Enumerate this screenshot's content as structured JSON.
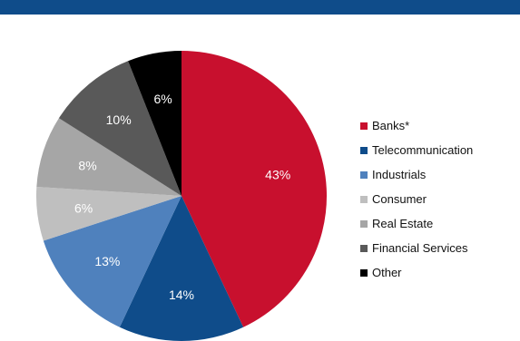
{
  "chart_data": {
    "type": "pie",
    "categories": [
      "Banks*",
      "Telecommunication",
      "Industrials",
      "Consumer",
      "Real Estate",
      "Financial Services",
      "Other"
    ],
    "values": [
      43,
      14,
      13,
      6,
      8,
      10,
      6
    ],
    "labels": [
      "43%",
      "14%",
      "13%",
      "6%",
      "8%",
      "10%",
      "6%"
    ],
    "colors": [
      "#c8102e",
      "#0f4c8a",
      "#4f81bd",
      "#bfbfbf",
      "#a6a6a6",
      "#595959",
      "#000000"
    ],
    "label_colors": [
      "#ffffff",
      "#ffffff",
      "#ffffff",
      "#ffffff",
      "#ffffff",
      "#ffffff",
      "#ffffff"
    ],
    "start": "top, clockwise",
    "legend_position": "right"
  }
}
